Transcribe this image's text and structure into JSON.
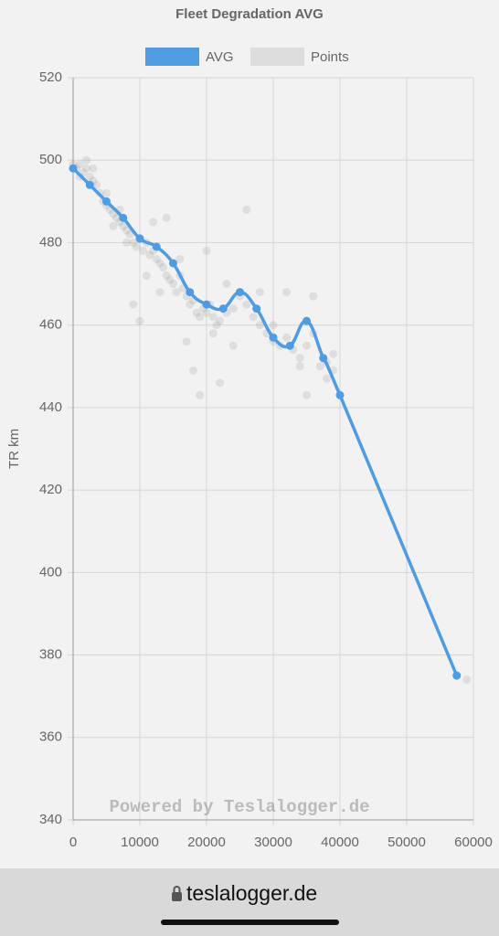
{
  "chart_data": {
    "type": "line",
    "title": "Fleet Degradation AVG",
    "y_label": "TR km",
    "watermark": "Powered by Teslalogger.de",
    "xlim": [
      0,
      60000
    ],
    "xticks": [
      0,
      10000,
      20000,
      30000,
      40000,
      50000,
      60000
    ],
    "ylim": [
      340,
      520
    ],
    "yticks": [
      340,
      360,
      380,
      400,
      420,
      440,
      460,
      480,
      500,
      520
    ],
    "grid": true,
    "series": [
      {
        "name": "AVG",
        "color": "#4f9ce2",
        "x": [
          0,
          2500,
          5000,
          7500,
          10000,
          12500,
          15000,
          17500,
          20000,
          22500,
          25000,
          27500,
          30000,
          32500,
          35000,
          37500,
          40000,
          57500
        ],
        "values": [
          498,
          494,
          490,
          486,
          481,
          479,
          475,
          468,
          465,
          464,
          468,
          464,
          457,
          455,
          461,
          452,
          443,
          375
        ]
      },
      {
        "name": "Points",
        "type": "scatter",
        "color": "rgba(150,150,150,0.22)",
        "x": [
          0,
          500,
          1000,
          1500,
          2000,
          2500,
          3000,
          3500,
          4000,
          4500,
          5000,
          5500,
          6000,
          6500,
          7000,
          7500,
          8000,
          8500,
          9000,
          9500,
          10000,
          10500,
          11000,
          11500,
          12000,
          12500,
          13000,
          13500,
          14000,
          14500,
          15000,
          15500,
          16000,
          16500,
          17000,
          17500,
          18000,
          18500,
          19000,
          19500,
          20000,
          20500,
          21000,
          21500,
          22000,
          23000,
          24000,
          25000,
          26000,
          27000,
          28000,
          29000,
          30000,
          31000,
          32000,
          33000,
          34000,
          35000,
          36000,
          37000,
          38000,
          39000,
          57500,
          59000,
          2000,
          3000,
          1000,
          5000,
          6000,
          7000,
          8000,
          9000,
          10000,
          11000,
          12000,
          13000,
          14000,
          16000,
          17000,
          18000,
          19000,
          20000,
          21000,
          22000,
          23000,
          24000,
          26000,
          28000,
          30000,
          32000,
          34000,
          35000,
          36000,
          38000,
          39000
        ],
        "values": [
          499,
          498,
          499,
          497,
          498,
          496,
          495,
          494,
          492,
          490,
          489,
          488,
          487,
          486,
          485,
          484,
          483,
          482,
          480,
          479,
          481,
          478,
          480,
          477,
          478,
          476,
          475,
          474,
          472,
          471,
          470,
          468,
          472,
          469,
          467,
          465,
          466,
          463,
          462,
          464,
          463,
          465,
          462,
          460,
          461,
          463,
          464,
          467,
          465,
          462,
          460,
          458,
          456,
          455,
          457,
          454,
          452,
          455,
          458,
          450,
          451,
          449,
          375,
          374,
          500,
          498,
          496,
          492,
          484,
          488,
          480,
          465,
          461,
          472,
          485,
          468,
          486,
          476,
          456,
          449,
          443,
          478,
          458,
          446,
          470,
          455,
          488,
          468,
          460,
          468,
          450,
          443,
          467,
          447,
          453
        ]
      }
    ]
  },
  "browser": {
    "address": "teslalogger.de"
  }
}
